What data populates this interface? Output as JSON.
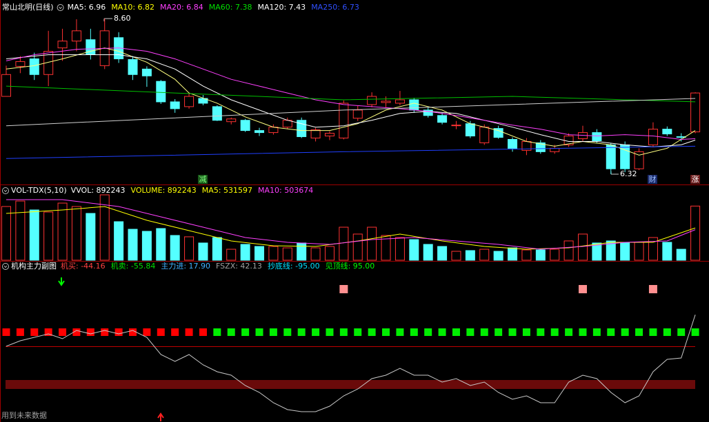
{
  "chart_data": [
    {
      "type": "candlestick",
      "title": "常山北明(日线)",
      "legend": [
        {
          "text": "MA5: 6.96",
          "color": "#ffffff"
        },
        {
          "text": "MA10: 6.82",
          "color": "#ffff00"
        },
        {
          "text": "MA20: 6.84",
          "color": "#ff40ff"
        },
        {
          "text": "MA60: 7.38",
          "color": "#00e000"
        },
        {
          "text": "MA120: 7.43",
          "color": "#ffffff"
        },
        {
          "text": "MA250: 6.73",
          "color": "#3050ff"
        }
      ],
      "open": [
        7.46,
        7.9,
        8.01,
        7.78,
        8.17,
        8.27,
        8.29,
        7.91,
        8.32,
        8.0,
        7.86,
        7.68,
        7.38,
        7.31,
        7.43,
        7.31,
        7.09,
        7.11,
        6.96,
        6.93,
        7.01,
        7.11,
        6.85,
        6.88,
        6.85,
        7.14,
        7.34,
        7.37,
        7.36,
        7.41,
        7.26,
        7.18,
        7.03,
        7.06,
        6.78,
        6.99,
        6.83,
        6.67,
        6.78,
        6.65,
        6.75,
        6.84,
        6.93,
        6.75,
        6.75,
        6.4,
        6.75,
        6.98,
        6.87,
        6.94
      ],
      "high": [
        7.91,
        8.05,
        8.1,
        8.42,
        8.45,
        8.59,
        8.45,
        8.6,
        8.4,
        8.05,
        7.9,
        7.7,
        7.42,
        7.5,
        7.48,
        7.33,
        7.15,
        7.13,
        7.0,
        7.05,
        7.15,
        7.15,
        7.0,
        6.95,
        7.4,
        7.32,
        7.52,
        7.46,
        7.54,
        7.44,
        7.3,
        7.22,
        7.1,
        7.1,
        7.05,
        7.03,
        6.86,
        6.85,
        6.82,
        6.75,
        6.92,
        7.03,
        6.98,
        6.78,
        6.8,
        6.7,
        7.08,
        7.02,
        6.92,
        7.52
      ],
      "low": [
        7.46,
        7.8,
        7.7,
        7.61,
        7.98,
        8.12,
        8.0,
        7.86,
        7.95,
        7.7,
        7.6,
        7.35,
        7.22,
        7.28,
        7.33,
        7.1,
        7.05,
        6.94,
        6.88,
        6.9,
        6.98,
        6.85,
        6.8,
        6.82,
        6.83,
        7.1,
        7.3,
        7.3,
        7.33,
        7.22,
        7.15,
        7.05,
        6.98,
        6.85,
        6.75,
        6.84,
        6.65,
        6.6,
        6.62,
        6.62,
        6.72,
        6.8,
        6.78,
        6.32,
        6.35,
        6.38,
        6.72,
        6.88,
        6.8,
        6.92
      ],
      "close": [
        7.78,
        7.97,
        7.78,
        8.12,
        8.27,
        8.42,
        8.07,
        8.42,
        8.01,
        7.78,
        7.76,
        7.38,
        7.28,
        7.46,
        7.36,
        7.11,
        7.13,
        6.96,
        6.93,
        7.01,
        7.11,
        6.87,
        6.97,
        6.92,
        7.36,
        7.26,
        7.46,
        7.39,
        7.41,
        7.26,
        7.18,
        7.08,
        7.04,
        6.88,
        7.01,
        6.86,
        6.7,
        6.8,
        6.65,
        6.7,
        6.88,
        6.93,
        6.81,
        6.4,
        6.4,
        6.65,
        6.98,
        6.91,
        6.86,
        7.51
      ],
      "up_color": "#ff3232",
      "down_color": "#54ffff",
      "ma_lines": [
        {
          "name": "MA5",
          "color": "#ffff80",
          "x": [
            0,
            2,
            4,
            6,
            7,
            8,
            10,
            12,
            13,
            15,
            17,
            19,
            21,
            23,
            25,
            27,
            29,
            31,
            33,
            35,
            37,
            39,
            41,
            43,
            45,
            47,
            49
          ],
          "values": [
            7.86,
            7.91,
            8.01,
            8.12,
            8.17,
            8.12,
            7.96,
            7.71,
            7.51,
            7.36,
            7.16,
            7.01,
            6.96,
            6.96,
            7.06,
            7.26,
            7.36,
            7.26,
            7.06,
            6.96,
            6.8,
            6.73,
            6.8,
            6.75,
            6.6,
            6.7,
            6.96
          ]
        },
        {
          "name": "MA10",
          "color": "#ffffff",
          "x": [
            0,
            3,
            6,
            8,
            10,
            12,
            14,
            16,
            18,
            20,
            22,
            24,
            26,
            28,
            30,
            32,
            34,
            36,
            38,
            40,
            42,
            44,
            46,
            48,
            49
          ],
          "values": [
            8.01,
            8.07,
            8.07,
            8.07,
            8.01,
            7.86,
            7.61,
            7.41,
            7.26,
            7.11,
            7.01,
            7.03,
            7.11,
            7.21,
            7.24,
            7.21,
            7.11,
            7.01,
            6.9,
            6.8,
            6.8,
            6.75,
            6.72,
            6.75,
            6.82
          ]
        },
        {
          "name": "MA20",
          "color": "#ff40ff",
          "x": [
            0,
            2,
            5,
            8,
            10,
            12,
            14,
            16,
            18,
            20,
            22,
            24,
            26,
            28,
            30,
            32,
            34,
            36,
            38,
            40,
            42,
            44,
            46,
            48,
            49
          ],
          "values": [
            7.98,
            8.07,
            8.15,
            8.17,
            8.12,
            8.01,
            7.86,
            7.71,
            7.61,
            7.51,
            7.41,
            7.34,
            7.31,
            7.28,
            7.24,
            7.18,
            7.11,
            7.04,
            6.98,
            6.9,
            6.88,
            6.9,
            6.88,
            6.83,
            6.84
          ]
        },
        {
          "name": "MA60",
          "color": "#00c000",
          "x": [
            0,
            12,
            24,
            36,
            49
          ],
          "values": [
            7.61,
            7.51,
            7.41,
            7.46,
            7.38
          ]
        },
        {
          "name": "MA120",
          "color": "#d0d0d0",
          "x": [
            0,
            24,
            49
          ],
          "values": [
            7.03,
            7.26,
            7.43
          ]
        },
        {
          "name": "MA250",
          "color": "#2040ff",
          "x": [
            0,
            24,
            49
          ],
          "values": [
            6.55,
            6.65,
            6.73
          ]
        }
      ],
      "ylim": [
        6.2,
        8.69
      ],
      "annotations": [
        "8.60",
        "6.32"
      ],
      "markers": [
        "减",
        "财",
        "涨"
      ]
    },
    {
      "type": "bar",
      "title": "VOL-TDX(5,10)",
      "legend": [
        {
          "text": "VVOL: 892243",
          "color": "#ffffff"
        },
        {
          "text": "VOLUME: 892243",
          "color": "#ffff00"
        },
        {
          "text": "MA5: 531597",
          "color": "#ffff00"
        },
        {
          "text": "MA10: 503674",
          "color": "#ff40ff"
        }
      ],
      "values": [
        885000,
        975000,
        828000,
        794000,
        941000,
        885000,
        771000,
        1077000,
        635000,
        510000,
        476000,
        522000,
        408000,
        386000,
        284000,
        374000,
        181000,
        261000,
        227000,
        227000,
        204000,
        284000,
        204000,
        227000,
        544000,
        431000,
        544000,
        408000,
        374000,
        340000,
        261000,
        227000,
        147000,
        159000,
        181000,
        147000,
        204000,
        170000,
        170000,
        181000,
        318000,
        431000,
        284000,
        318000,
        295000,
        295000,
        374000,
        295000,
        181000,
        892243
      ],
      "ma_lines": [
        {
          "name": "MA5",
          "color": "#ffff00",
          "x": [
            0,
            4,
            7,
            10,
            13,
            16,
            19,
            22,
            25,
            28,
            31,
            34,
            37,
            40,
            43,
            46,
            49
          ],
          "values": [
            771000,
            828000,
            885000,
            658000,
            488000,
            318000,
            238000,
            227000,
            318000,
            431000,
            318000,
            227000,
            181000,
            204000,
            295000,
            295000,
            531597
          ]
        },
        {
          "name": "MA10",
          "color": "#ff40ff",
          "x": [
            0,
            4,
            8,
            11,
            14,
            17,
            20,
            23,
            26,
            29,
            32,
            35,
            38,
            41,
            44,
            47,
            49
          ],
          "values": [
            998000,
            998000,
            885000,
            714000,
            544000,
            374000,
            295000,
            261000,
            340000,
            374000,
            318000,
            261000,
            181000,
            227000,
            295000,
            318000,
            503674
          ]
        }
      ],
      "ylim": [
        0,
        1100000
      ]
    },
    {
      "type": "line",
      "title": "机构主力副图",
      "legend": [
        {
          "text": "机买: -44.16",
          "color": "#ff4040"
        },
        {
          "text": "机卖: -55.84",
          "color": "#00e000"
        },
        {
          "text": "主力进: 17.90",
          "color": "#40b0ff"
        },
        {
          "text": "FSZX: 42.13",
          "color": "#a0a0a0"
        },
        {
          "text": "抄底线: -95.00",
          "color": "#00e0ff"
        },
        {
          "text": "见顶线: 95.00",
          "color": "#00ff00"
        }
      ],
      "series": [
        {
          "name": "FSZX",
          "color": "#c8c8c8",
          "values": [
            -0.5,
            7.0,
            11.6,
            16.3,
            9.8,
            20.9,
            16.3,
            20.9,
            16.3,
            20.9,
            11.6,
            -11.6,
            -20.9,
            -11.6,
            -25.6,
            -34.9,
            -39.5,
            -53.5,
            -62.8,
            -76.7,
            -86.0,
            -88.8,
            -88.8,
            -81.4,
            -67.4,
            -58.1,
            -44.2,
            -39.5,
            -30.2,
            -39.5,
            -39.5,
            -48.8,
            -44.2,
            -53.5,
            -48.8,
            -62.8,
            -72.1,
            -67.4,
            -76.7,
            -76.7,
            -48.8,
            -39.5,
            -44.2,
            -62.8,
            -76.7,
            -67.4,
            -34.9,
            -18.1,
            -16.3,
            42.13
          ]
        }
      ],
      "trend": [
        1,
        1,
        1,
        1,
        1,
        1,
        1,
        1,
        1,
        1,
        1,
        1,
        1,
        1,
        1,
        -1,
        -1,
        -1,
        -1,
        -1,
        -1,
        -1,
        -1,
        -1,
        -1,
        -1,
        -1,
        -1,
        -1,
        -1,
        -1,
        -1,
        -1,
        -1,
        -1,
        -1,
        -1,
        -1,
        -1,
        -1,
        -1,
        -1,
        -1,
        -1,
        -1,
        -1,
        -1,
        -1,
        -1,
        -1
      ],
      "trend_up_color": "#ff0000",
      "trend_down_color": "#00ee00",
      "top_signal": [
        0,
        0,
        0,
        0,
        0,
        0,
        0,
        0,
        0,
        0,
        0,
        0,
        0,
        0,
        0,
        0,
        0,
        0,
        0,
        0,
        0,
        0,
        0,
        0,
        1,
        0,
        0,
        0,
        0,
        0,
        0,
        0,
        0,
        0,
        0,
        0,
        0,
        0,
        0,
        0,
        0,
        1,
        0,
        0,
        0,
        0,
        1,
        0,
        0,
        0
      ],
      "signal_color": "#ff9090",
      "ylim": [
        -100,
        100
      ]
    }
  ],
  "footer_note": "用到未来数据"
}
